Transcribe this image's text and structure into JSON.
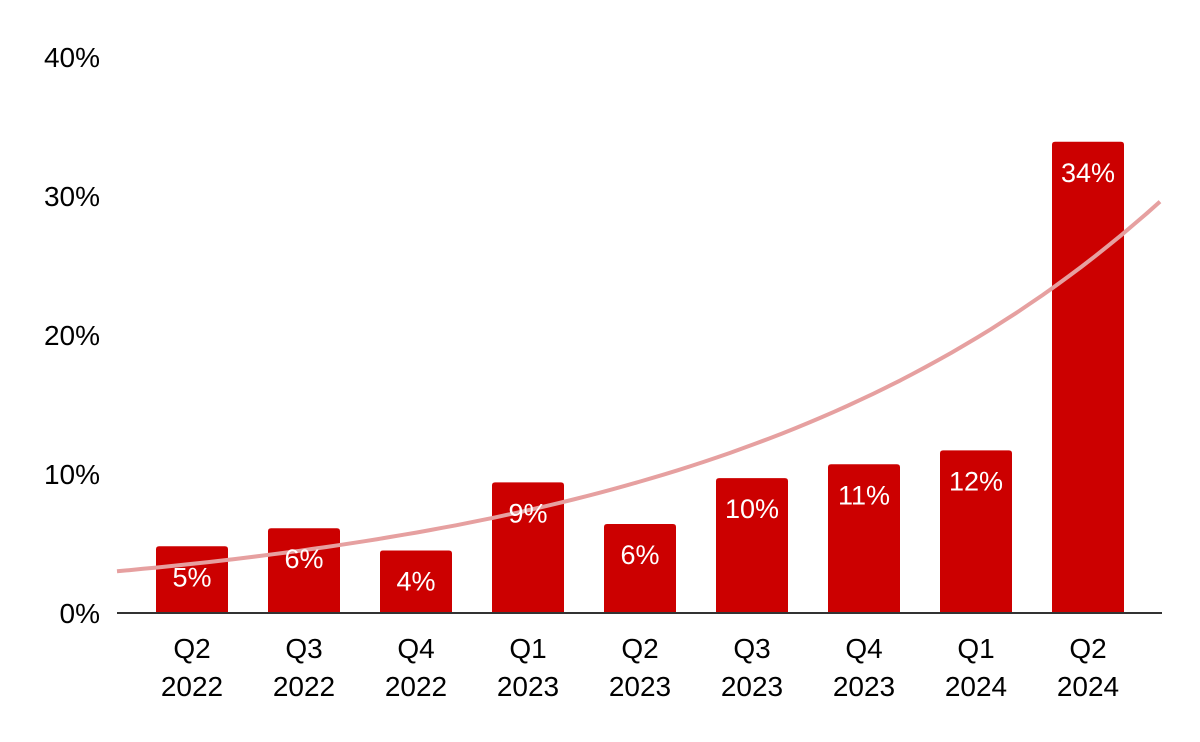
{
  "chart_data": {
    "type": "bar",
    "title": "",
    "xlabel": "",
    "ylabel": "",
    "categories": [
      [
        "Q2",
        "2022"
      ],
      [
        "Q3",
        "2022"
      ],
      [
        "Q4",
        "2022"
      ],
      [
        "Q1",
        "2023"
      ],
      [
        "Q2",
        "2023"
      ],
      [
        "Q3",
        "2023"
      ],
      [
        "Q4",
        "2023"
      ],
      [
        "Q1",
        "2024"
      ],
      [
        "Q2",
        "2024"
      ]
    ],
    "values": [
      4.8,
      6.1,
      4.5,
      9.4,
      6.4,
      9.7,
      10.7,
      11.7,
      33.9
    ],
    "data_labels": [
      "5%",
      "6%",
      "4%",
      "9%",
      "6%",
      "10%",
      "11%",
      "12%",
      "34%"
    ],
    "ylim": [
      0,
      40
    ],
    "yticks": [
      0,
      10,
      20,
      30,
      40
    ],
    "ytick_labels": [
      "0%",
      "10%",
      "20%",
      "30%",
      "40%"
    ],
    "grid": false,
    "legend": "none",
    "bar_color": "#cc0000",
    "trendline": {
      "type": "exponential",
      "color": "#e6a0a0",
      "start_value": 3.0,
      "end_value": 29.6
    }
  }
}
